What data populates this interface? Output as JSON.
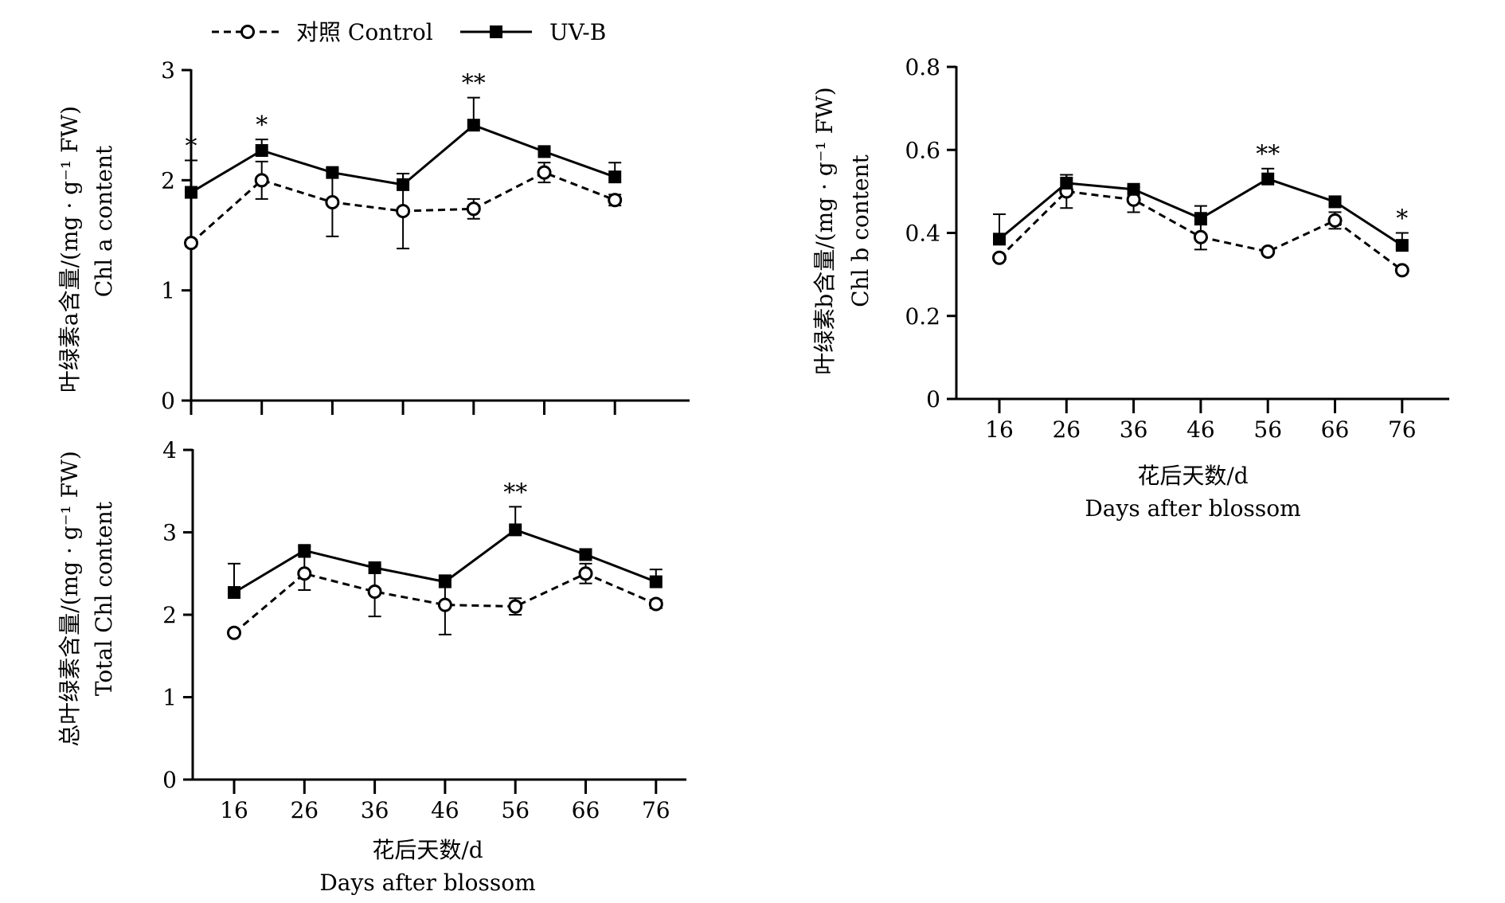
{
  "legend": {
    "items": [
      {
        "label": "对照 Control",
        "series": "control",
        "line": "dashed",
        "marker": "open-circle"
      },
      {
        "label": "UV-B",
        "series": "uvb",
        "line": "solid",
        "marker": "filled-square"
      }
    ]
  },
  "colors": {
    "ink": "#000000",
    "background": "#ffffff"
  },
  "chart_data": [
    {
      "id": "chl-a",
      "type": "line",
      "ylabel_cn": "叶绿素a含量/(mg · g⁻¹ FW)",
      "ylabel_en": "Chl a content",
      "xlabel_cn": "",
      "xlabel_en": "",
      "x": [
        16,
        26,
        36,
        46,
        56,
        66,
        76
      ],
      "x_tick_labels": [],
      "ylim": [
        0,
        3
      ],
      "yticks": [
        "0",
        "1",
        "2",
        "3"
      ],
      "series": [
        {
          "name": "对照 Control",
          "key": "control",
          "values": [
            1.43,
            2.0,
            1.8,
            1.72,
            1.74,
            2.07,
            1.82
          ],
          "err": [
            0.03,
            0.17,
            0.31,
            0.34,
            0.09,
            0.09,
            0.05
          ]
        },
        {
          "name": "UV-B",
          "key": "uvb",
          "values": [
            1.89,
            2.27,
            2.07,
            1.96,
            2.5,
            2.26,
            2.03
          ],
          "err": [
            0.29,
            0.1,
            0.02,
            0.1,
            0.25,
            0.03,
            0.13
          ]
        }
      ],
      "annotations": [
        {
          "x": 16,
          "text": "*"
        },
        {
          "x": 26,
          "text": "*"
        },
        {
          "x": 56,
          "text": "**"
        }
      ]
    },
    {
      "id": "chl-b",
      "type": "line",
      "ylabel_cn": "叶绿素b含量/(mg · g⁻¹ FW)",
      "ylabel_en": "Chl b content",
      "xlabel_cn": "花后天数/d",
      "xlabel_en": "Days after blossom",
      "x": [
        16,
        26,
        36,
        46,
        56,
        66,
        76
      ],
      "x_tick_labels": [
        "16",
        "26",
        "36",
        "46",
        "56",
        "66",
        "76"
      ],
      "ylim": [
        0,
        0.8
      ],
      "yticks": [
        "0",
        "0.2",
        "0.4",
        "0.6",
        "0.8"
      ],
      "series": [
        {
          "name": "对照 Control",
          "key": "control",
          "values": [
            0.34,
            0.5,
            0.48,
            0.39,
            0.355,
            0.43,
            0.31
          ],
          "err": [
            0.005,
            0.04,
            0.03,
            0.03,
            0.005,
            0.02,
            0.005
          ]
        },
        {
          "name": "UV-B",
          "key": "uvb",
          "values": [
            0.385,
            0.52,
            0.505,
            0.435,
            0.53,
            0.475,
            0.37
          ],
          "err": [
            0.06,
            0.02,
            0.005,
            0.03,
            0.025,
            0.005,
            0.03
          ]
        }
      ],
      "annotations": [
        {
          "x": 56,
          "text": "**"
        },
        {
          "x": 76,
          "text": "*"
        }
      ]
    },
    {
      "id": "total-chl",
      "type": "line",
      "ylabel_cn": "总叶绿素含量/(mg · g⁻¹ FW)",
      "ylabel_en": "Total Chl  content",
      "xlabel_cn": "花后天数/d",
      "xlabel_en": "Days after blossom",
      "x": [
        16,
        26,
        36,
        46,
        56,
        66,
        76
      ],
      "x_tick_labels": [
        "16",
        "26",
        "36",
        "46",
        "56",
        "66",
        "76"
      ],
      "ylim": [
        0,
        4
      ],
      "yticks": [
        "0",
        "1",
        "2",
        "3",
        "4"
      ],
      "series": [
        {
          "name": "对照 Control",
          "key": "control",
          "values": [
            1.78,
            2.5,
            2.28,
            2.12,
            2.1,
            2.5,
            2.13
          ],
          "err": [
            0.03,
            0.2,
            0.3,
            0.36,
            0.1,
            0.12,
            0.05
          ]
        },
        {
          "name": "UV-B",
          "key": "uvb",
          "values": [
            2.27,
            2.78,
            2.57,
            2.4,
            3.03,
            2.73,
            2.4
          ],
          "err": [
            0.35,
            0.05,
            0.03,
            0.03,
            0.28,
            0.03,
            0.15
          ]
        }
      ],
      "annotations": [
        {
          "x": 56,
          "text": "**"
        }
      ]
    }
  ]
}
